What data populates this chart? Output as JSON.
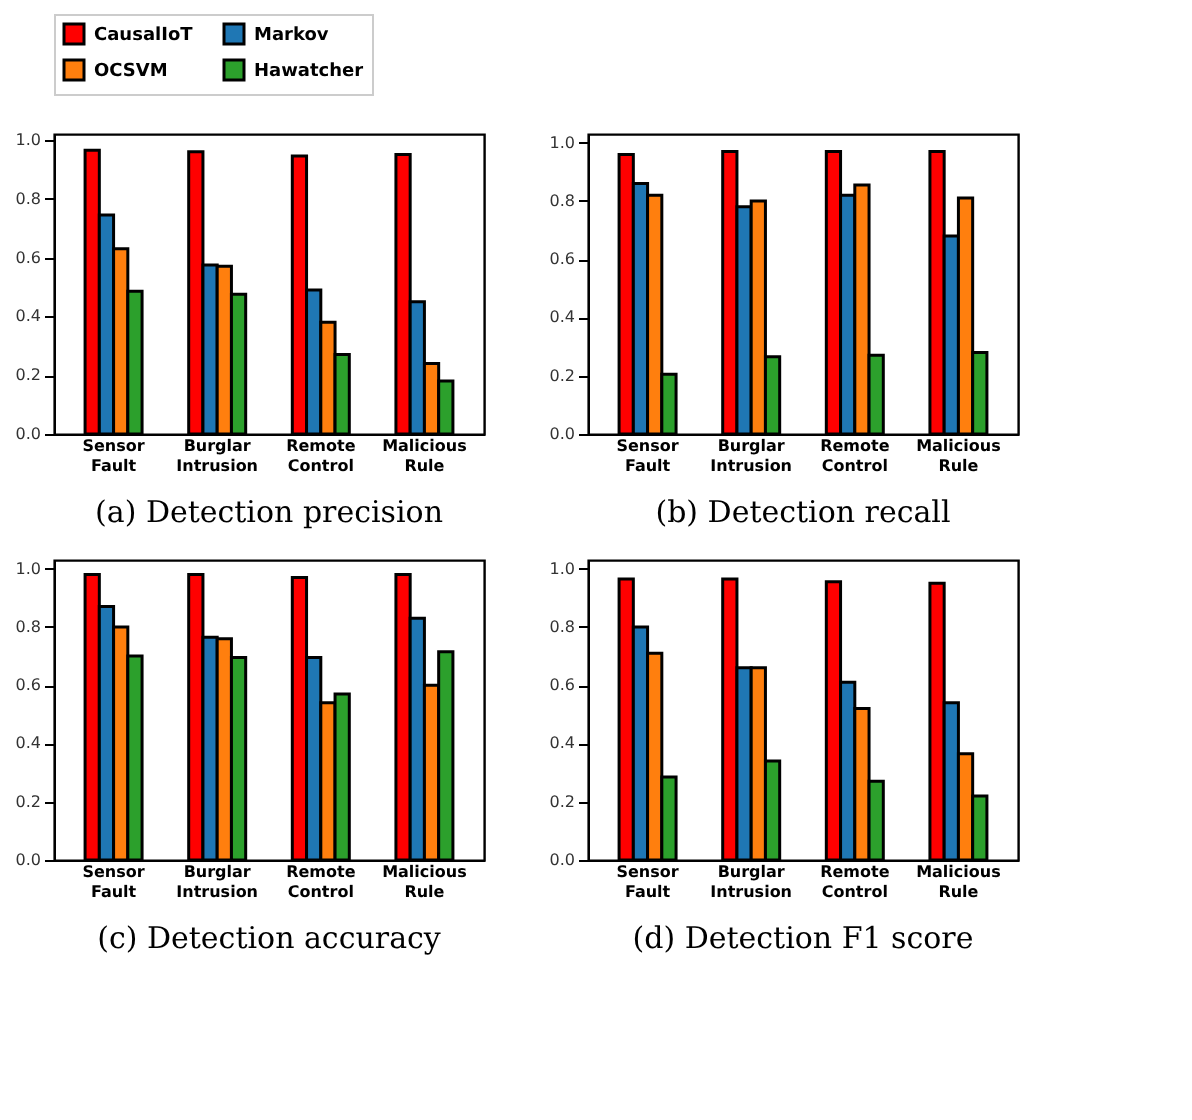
{
  "chart_data": [
    {
      "type": "bar",
      "title": "(a) Detection precision",
      "categories": [
        "Sensor Fault",
        "Burglar Intrusion",
        "Remote Control",
        "Malicious Rule"
      ],
      "ylim": [
        0,
        1.02
      ],
      "yticks": [
        {
          "value": 0,
          "label": "0.0"
        },
        {
          "value": 0.2,
          "label": "0.2"
        },
        {
          "value": 0.4,
          "label": "0.4"
        },
        {
          "value": 0.6,
          "label": "0.6"
        },
        {
          "value": 0.8,
          "label": "0.8"
        },
        {
          "value": 1,
          "label": "1.0"
        }
      ],
      "legend": "top",
      "grid": false,
      "series": [
        {
          "name": "CausalIoT",
          "color": "#ff0000",
          "values": [
            0.965,
            0.96,
            0.945,
            0.95
          ]
        },
        {
          "name": "Markov",
          "color": "#1f77b4",
          "values": [
            0.745,
            0.575,
            0.49,
            0.45
          ]
        },
        {
          "name": "OCSVM",
          "color": "#ff7f0e",
          "values": [
            0.63,
            0.57,
            0.38,
            0.24
          ]
        },
        {
          "name": "Hawatcher",
          "color": "#2ca02c",
          "values": [
            0.485,
            0.475,
            0.27,
            0.18
          ]
        }
      ]
    },
    {
      "type": "bar",
      "title": "(b) Detection recall",
      "categories": [
        "Sensor Fault",
        "Burglar Intrusion",
        "Remote Control",
        "Malicious Rule"
      ],
      "ylim": [
        0,
        1.03
      ],
      "yticks": [
        {
          "value": 0,
          "label": "0.0"
        },
        {
          "value": 0.2,
          "label": "0.2"
        },
        {
          "value": 0.4,
          "label": "0.4"
        },
        {
          "value": 0.6,
          "label": "0.6"
        },
        {
          "value": 0.8,
          "label": "0.8"
        },
        {
          "value": 1,
          "label": "1.0"
        }
      ],
      "legend": "top",
      "grid": false,
      "series": [
        {
          "name": "CausalIoT",
          "color": "#ff0000",
          "values": [
            0.96,
            0.97,
            0.97,
            0.97
          ]
        },
        {
          "name": "Markov",
          "color": "#1f77b4",
          "values": [
            0.86,
            0.78,
            0.82,
            0.68
          ]
        },
        {
          "name": "OCSVM",
          "color": "#ff7f0e",
          "values": [
            0.82,
            0.8,
            0.855,
            0.81
          ]
        },
        {
          "name": "Hawatcher",
          "color": "#2ca02c",
          "values": [
            0.205,
            0.265,
            0.27,
            0.28
          ]
        }
      ]
    },
    {
      "type": "bar",
      "title": "(c) Detection accuracy",
      "categories": [
        "Sensor Fault",
        "Burglar Intrusion",
        "Remote Control",
        "Malicious Rule"
      ],
      "ylim": [
        0,
        1.03
      ],
      "yticks": [
        {
          "value": 0,
          "label": "0.0"
        },
        {
          "value": 0.2,
          "label": "0.2"
        },
        {
          "value": 0.4,
          "label": "0.4"
        },
        {
          "value": 0.6,
          "label": "0.6"
        },
        {
          "value": 0.8,
          "label": "0.8"
        },
        {
          "value": 1,
          "label": "1.0"
        }
      ],
      "legend": "top",
      "grid": false,
      "series": [
        {
          "name": "CausalIoT",
          "color": "#ff0000",
          "values": [
            0.98,
            0.98,
            0.97,
            0.98
          ]
        },
        {
          "name": "Markov",
          "color": "#1f77b4",
          "values": [
            0.87,
            0.765,
            0.695,
            0.83
          ]
        },
        {
          "name": "OCSVM",
          "color": "#ff7f0e",
          "values": [
            0.8,
            0.76,
            0.54,
            0.6
          ]
        },
        {
          "name": "Hawatcher",
          "color": "#2ca02c",
          "values": [
            0.7,
            0.695,
            0.57,
            0.715
          ]
        }
      ]
    },
    {
      "type": "bar",
      "title": "(d) Detection F1 score",
      "categories": [
        "Sensor Fault",
        "Burglar Intrusion",
        "Remote Control",
        "Malicious Rule"
      ],
      "ylim": [
        0,
        1.03
      ],
      "yticks": [
        {
          "value": 0,
          "label": "0.0"
        },
        {
          "value": 0.2,
          "label": "0.2"
        },
        {
          "value": 0.4,
          "label": "0.4"
        },
        {
          "value": 0.6,
          "label": "0.6"
        },
        {
          "value": 0.8,
          "label": "0.8"
        },
        {
          "value": 1,
          "label": "1.0"
        }
      ],
      "legend": "top",
      "grid": false,
      "series": [
        {
          "name": "CausalIoT",
          "color": "#ff0000",
          "values": [
            0.965,
            0.965,
            0.955,
            0.95
          ]
        },
        {
          "name": "Markov",
          "color": "#1f77b4",
          "values": [
            0.8,
            0.66,
            0.61,
            0.54
          ]
        },
        {
          "name": "OCSVM",
          "color": "#ff7f0e",
          "values": [
            0.71,
            0.66,
            0.52,
            0.365
          ]
        },
        {
          "name": "Hawatcher",
          "color": "#2ca02c",
          "values": [
            0.285,
            0.34,
            0.27,
            0.22
          ]
        }
      ]
    }
  ]
}
